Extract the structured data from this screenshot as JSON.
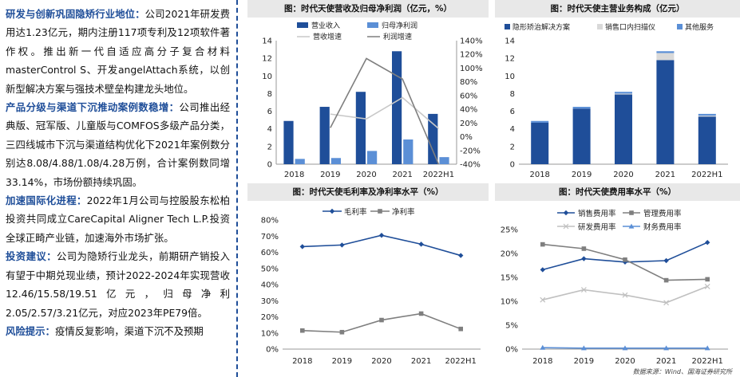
{
  "left_text": [
    {
      "head": "研发与创新巩固隐矫行业地位：",
      "body": "公司2021年研发费用达1.23亿元，期内注册117项专利及12项软件著作权。推出新一代自适应高分子复合材料masterControl S、开发angelAttach系统，以创新型解决方案与强技术壁垒构建龙头地位。"
    },
    {
      "head": "产品分级与渠道下沉推动案例数稳增：",
      "body": "公司推出经典版、冠军版、儿童版与COMFOS多级产品分类，三四线城市下沉与渠道结构优化下2021年案例数分别达8.08/4.88/1.08/4.28万例，合计案例数同增33.14%，市场份额持续巩固。"
    },
    {
      "head": "加速国际化进程：",
      "body": "2022年1月公司与控股股东松柏投资共同成立CareCapital Aligner Tech L.P.投资全球正畸产业链，加速海外市场扩张。"
    },
    {
      "head": "投资建议：",
      "body": "公司为隐矫行业龙头，前期研产销投入有望于中期兑现业绩，预计2022-2024年实现营收12.46/15.58/19.51亿元，归母净利2.05/2.57/3.21亿元，对应2023年PE79倍。"
    },
    {
      "head": "风险提示：",
      "body": "疫情反复影响，渠道下沉不及预期"
    }
  ],
  "source_note": "数据来源：Wind、国海证券研究所",
  "colors": {
    "dark_blue": "#1f4e99",
    "light_blue": "#5b8fd6",
    "gray_line": "#c8c8c8",
    "dark_gray_line": "#7f7f7f",
    "pale_gray": "#d9d9d9"
  },
  "chart_data": [
    {
      "type": "bar",
      "title": "图：时代天使营收及归母净利润（亿元，%）",
      "categories": [
        "2018",
        "2019",
        "2020",
        "2021",
        "2022H1"
      ],
      "series": [
        {
          "name": "营业收入",
          "kind": "bar",
          "axis": "left",
          "values": [
            4.9,
            6.5,
            8.2,
            12.8,
            5.7
          ]
        },
        {
          "name": "归母净利润",
          "kind": "bar",
          "axis": "left",
          "values": [
            0.6,
            0.7,
            1.5,
            2.8,
            0.8
          ]
        },
        {
          "name": "营收增速",
          "kind": "line",
          "axis": "right",
          "values": [
            null,
            33,
            26,
            57,
            12
          ]
        },
        {
          "name": "利润增速",
          "kind": "line",
          "axis": "right",
          "values": [
            null,
            13,
            114,
            84,
            -40
          ]
        }
      ],
      "yticks_left": [
        "0",
        "2",
        "4",
        "6",
        "8",
        "10",
        "12",
        "14"
      ],
      "ylim_left": [
        0,
        14
      ],
      "yticks_right": [
        "-40%",
        "-20%",
        "0%",
        "20%",
        "40%",
        "60%",
        "80%",
        "100%",
        "120%",
        "140%"
      ],
      "ylim_right": [
        -40,
        140
      ],
      "legend": "top"
    },
    {
      "type": "bar",
      "title": "图：时代天使主营业务构成（亿元）",
      "categories": [
        "2018",
        "2019",
        "2020",
        "2021",
        "2022H1"
      ],
      "series": [
        {
          "name": "隐形矫治解决方案",
          "values": [
            4.7,
            6.3,
            7.9,
            11.8,
            5.4
          ]
        },
        {
          "name": "销售口内扫描仪",
          "values": [
            0.0,
            0.0,
            0.1,
            0.8,
            0.1
          ]
        },
        {
          "name": "其他服务",
          "values": [
            0.2,
            0.2,
            0.2,
            0.2,
            0.2
          ]
        }
      ],
      "stacked": true,
      "yticks": [
        "0",
        "2",
        "4",
        "6",
        "8",
        "10",
        "12",
        "14"
      ],
      "ylim": [
        0,
        14
      ],
      "legend": "top"
    },
    {
      "type": "line",
      "title": "图：时代天使毛利率及净利率水平（%）",
      "categories": [
        "2018",
        "2019",
        "2020",
        "2021",
        "2022H1"
      ],
      "series": [
        {
          "name": "毛利率",
          "values": [
            63.5,
            64.5,
            70.5,
            65.0,
            58.0
          ]
        },
        {
          "name": "净利率",
          "values": [
            11.5,
            10.5,
            18.0,
            22.0,
            12.5
          ]
        }
      ],
      "yticks": [
        "0%",
        "10%",
        "20%",
        "30%",
        "40%",
        "50%",
        "60%",
        "70%",
        "80%"
      ],
      "ylim": [
        0,
        80
      ],
      "legend": "top"
    },
    {
      "type": "line",
      "title": "图：时代天使费用率水平（%）",
      "categories": [
        "2018",
        "2019",
        "2020",
        "2021",
        "2022H1"
      ],
      "series": [
        {
          "name": "销售费用率",
          "values": [
            16.6,
            18.9,
            18.2,
            18.5,
            22.3
          ]
        },
        {
          "name": "管理费用率",
          "values": [
            21.9,
            21.0,
            18.7,
            14.4,
            14.6
          ]
        },
        {
          "name": "研发费用率",
          "values": [
            10.3,
            12.4,
            11.3,
            9.7,
            13.1
          ]
        },
        {
          "name": "财务费用率",
          "values": [
            0.3,
            0.2,
            0.2,
            0.2,
            0.2
          ]
        }
      ],
      "yticks": [
        "0%",
        "5%",
        "10%",
        "15%",
        "20%",
        "25%"
      ],
      "ylim": [
        0,
        25
      ],
      "legend": "top"
    }
  ]
}
